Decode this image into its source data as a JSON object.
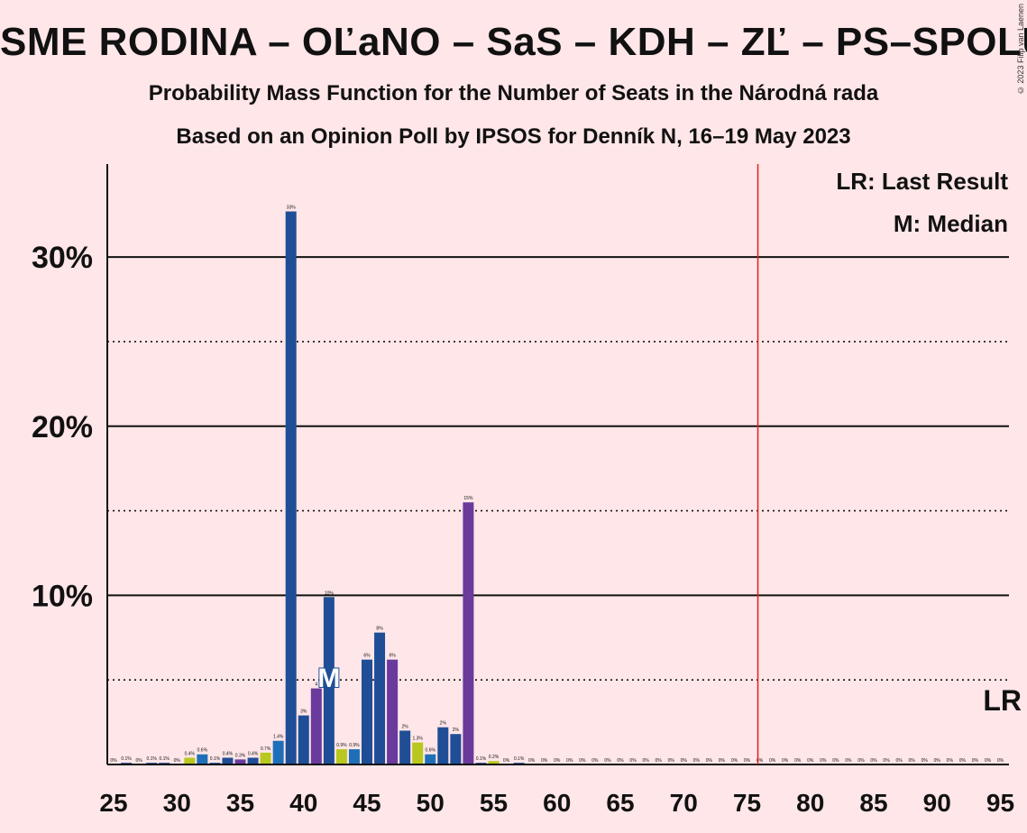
{
  "header": {
    "title": "SME RODINA – OĽaNO – SaS – KDH – ZĽ – PS–SPOLU",
    "subtitle": "Probability Mass Function for the Number of Seats in the Národná rada",
    "subtitle2": "Based on an Opinion Poll by IPSOS for Denník N, 16–19 May 2023",
    "copyright": "© 2023 Filip van Laenen"
  },
  "chart_data": {
    "type": "bar",
    "x": [
      25,
      26,
      27,
      28,
      29,
      30,
      31,
      32,
      33,
      34,
      35,
      36,
      37,
      38,
      39,
      40,
      41,
      42,
      43,
      44,
      45,
      46,
      47,
      48,
      49,
      50,
      51,
      52,
      53,
      54,
      55,
      56,
      57,
      58,
      59,
      60,
      61,
      62,
      63,
      64,
      65,
      66,
      67,
      68,
      69,
      70,
      71,
      72,
      73,
      74,
      75,
      76,
      77,
      78,
      79,
      80,
      81,
      82,
      83,
      84,
      85,
      86,
      87,
      88,
      89,
      90,
      91,
      92,
      93,
      94,
      95
    ],
    "values": [
      0,
      0.1,
      0,
      0.1,
      0.1,
      0,
      0.4,
      0.6,
      0.1,
      0.4,
      0.3,
      0.4,
      0.7,
      1.4,
      32.7,
      2.9,
      4.5,
      9.9,
      0.9,
      0.9,
      6.2,
      7.8,
      6.2,
      2.0,
      1.3,
      0.6,
      2.2,
      1.8,
      15.5,
      0.1,
      0.2,
      0,
      0.1,
      0,
      0,
      0,
      0,
      0,
      0,
      0,
      0,
      0,
      0,
      0,
      0,
      0,
      0,
      0,
      0,
      0,
      0,
      0,
      0,
      0,
      0,
      0,
      0,
      0,
      0,
      0,
      0,
      0,
      0,
      0,
      0,
      0,
      0,
      0,
      0,
      0,
      0
    ],
    "labels": [
      "0%",
      "0.1%",
      "0%",
      "0.1%",
      "0.1%",
      "0%",
      "0.4%",
      "0.6%",
      "0.1%",
      "0.4%",
      "0.3%",
      "0.4%",
      "0.7%",
      "1.4%",
      "33%",
      "3%",
      "4",
      "10%",
      "0.9%",
      "0.9%",
      "6%",
      "8%",
      "6%",
      "2%",
      "1.3%",
      "0.6%",
      "2%",
      "2%",
      "15%",
      "0.1%",
      "0.2%",
      "0%",
      "0.1%",
      "0%",
      "0%",
      "0%",
      "0%",
      "0%",
      "0%",
      "0%",
      "0%",
      "0%",
      "0%",
      "0%",
      "0%",
      "0%",
      "0%",
      "0%",
      "0%",
      "0%",
      "0%",
      "0%",
      "0%",
      "0%",
      "0%",
      "0%",
      "0%",
      "0%",
      "0%",
      "0%",
      "0%",
      "0%",
      "0%",
      "0%",
      "0%",
      "0%",
      "0%",
      "0%",
      "0%",
      "0%",
      "0%"
    ],
    "colors": [
      "#1f4e96",
      "#1f4e96",
      "#1f4e96",
      "#1f4e96",
      "#1f4e96",
      "#1f4e96",
      "#b8c81e",
      "#1f6fb8",
      "#1f4e96",
      "#1f4e96",
      "#6a3a9c",
      "#1f4e96",
      "#b8c81e",
      "#1f6fb8",
      "#1f4e96",
      "#1f4e96",
      "#6a3a9c",
      "#1f4e96",
      "#b8c81e",
      "#1f6fb8",
      "#1f4e96",
      "#1f4e96",
      "#6a3a9c",
      "#1f4e96",
      "#b8c81e",
      "#1f6fb8",
      "#1f4e96",
      "#1f4e96",
      "#6a3a9c",
      "#1f4e96",
      "#b8c81e",
      "#1f6fb8",
      "#1f4e96",
      "#1f4e96",
      "#6a3a9c",
      "#1f4e96",
      "#b8c81e",
      "#1f6fb8",
      "#1f4e96",
      "#1f4e96",
      "#6a3a9c",
      "#1f4e96",
      "#b8c81e",
      "#1f6fb8",
      "#1f4e96",
      "#1f4e96",
      "#6a3a9c",
      "#1f4e96",
      "#b8c81e",
      "#1f6fb8",
      "#1f4e96",
      "#1f4e96",
      "#6a3a9c",
      "#1f4e96",
      "#b8c81e",
      "#1f6fb8",
      "#1f4e96",
      "#1f4e96",
      "#6a3a9c",
      "#1f4e96",
      "#b8c81e",
      "#1f6fb8",
      "#1f4e96",
      "#1f4e96",
      "#6a3a9c",
      "#1f4e96",
      "#b8c81e",
      "#1f6fb8",
      "#1f4e96",
      "#1f4e96",
      "#6a3a9c"
    ],
    "xticks": [
      25,
      30,
      35,
      40,
      45,
      50,
      55,
      60,
      65,
      70,
      75,
      80,
      85,
      90,
      95
    ],
    "xtick_labels": [
      "25",
      "30",
      "35",
      "40",
      "45",
      "50",
      "55",
      "60",
      "65",
      "70",
      "75",
      "80",
      "85",
      "90",
      "95"
    ],
    "yticks_major": [
      10,
      20,
      30
    ],
    "ytick_labels": [
      "10%",
      "20%",
      "30%"
    ],
    "yticks_minor": [
      5,
      15,
      25
    ],
    "xlim": [
      25,
      95
    ],
    "ylim": [
      0,
      35.5
    ],
    "median": 42,
    "median_label": "M",
    "majority_line": 76,
    "last_result": 95,
    "last_result_label": "LR",
    "legend": [
      "LR: Last Result",
      "M: Median"
    ],
    "majority_color": "#e0201b",
    "grid": true
  }
}
